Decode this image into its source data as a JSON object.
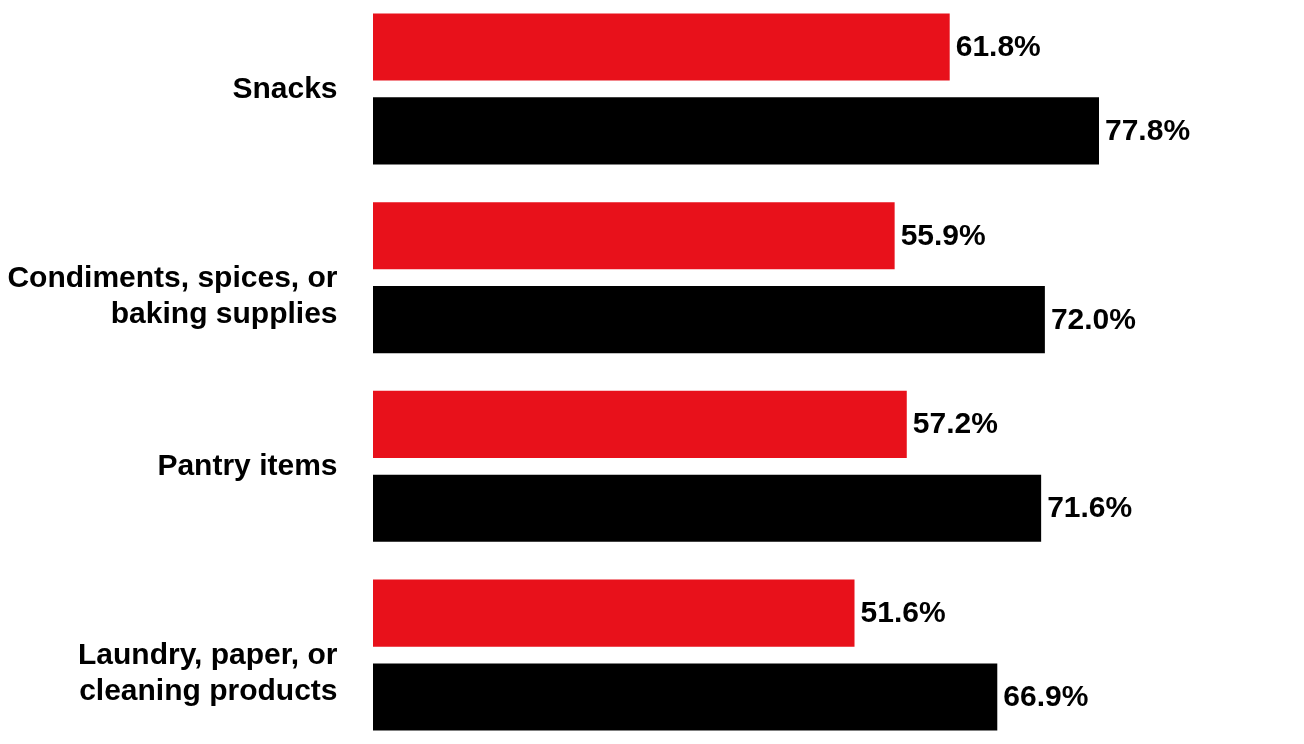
{
  "chart_data": {
    "type": "bar",
    "orientation": "horizontal",
    "categories": [
      "Snacks",
      "Condiments, spices, or baking supplies",
      "Pantry items",
      "Laundry, paper, or cleaning products"
    ],
    "series": [
      {
        "color": "#e8111b",
        "values": [
          61.8,
          55.9,
          57.2,
          51.6
        ],
        "value_labels": [
          "61.8%",
          "55.9%",
          "57.2%",
          "51.6%"
        ]
      },
      {
        "color": "#000000",
        "values": [
          77.8,
          72.0,
          71.6,
          66.9
        ],
        "value_labels": [
          "77.8%",
          "72.0%",
          "71.6%",
          "66.9%"
        ]
      }
    ]
  }
}
